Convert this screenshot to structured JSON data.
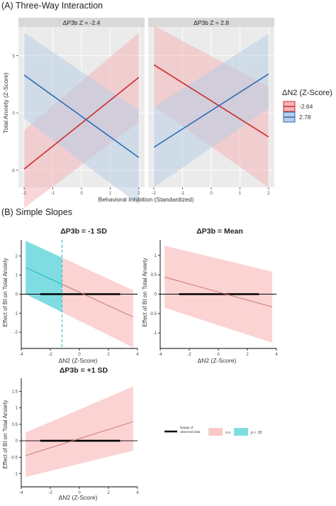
{
  "colors": {
    "red": "#cc2a2a",
    "blue": "#2a6db5",
    "red_band": "#f4b4b8",
    "blue_band": "#b9cde6",
    "slope_line": "#c87a6e",
    "sig_band": "#7fdde2",
    "sig_line": "#21b7c0",
    "strip": "#d9d9d9"
  },
  "panel_a": {
    "heading": "(A) Three-Way Interaction",
    "strips": [
      "ΔP3b Z = -2.4",
      "ΔP3b Z = 2.8"
    ],
    "ylabel": "Total Anxiety (Z-Score)",
    "xlabel": "Behavioral Inhibition (Standardized)",
    "legend": {
      "title": "ΔN2 (Z-Score)",
      "entries": [
        "-2.64",
        "2.78"
      ]
    }
  },
  "panel_b": {
    "heading": "(B) Simple Slopes",
    "plot_titles": [
      "ΔP3b = -1 SD",
      "ΔP3b = Mean",
      "ΔP3b = +1 SD"
    ],
    "ylabel": "Effect of BI on Total Anxiety",
    "xlabel": "ΔN2 (Z-Score)",
    "legend": {
      "range": "Range of observed data",
      "ns": "n.s.",
      "sig": "p < .05"
    }
  },
  "chart_data": [
    {
      "type": "line",
      "title": "ΔP3b Z = -2.4",
      "x": [
        -2,
        2
      ],
      "ylim": [
        -6.5,
        7.5
      ],
      "xlim": [
        -2.2,
        2.2
      ],
      "xticks": [
        -2,
        -1,
        0,
        1,
        2
      ],
      "yticks": [
        -5,
        0,
        5
      ],
      "series": [
        {
          "name": "-2.64",
          "color": "red",
          "values": [
            -4.9,
            3.1
          ],
          "lower": [
            -8.3,
            -0.8
          ],
          "upper": [
            -1.5,
            7.0
          ]
        },
        {
          "name": "2.78",
          "color": "blue",
          "values": [
            3.3,
            -3.9
          ],
          "lower": [
            -0.5,
            -8.0
          ],
          "upper": [
            7.0,
            0.2
          ]
        }
      ]
    },
    {
      "type": "line",
      "title": "ΔP3b Z = 2.8",
      "x": [
        -2,
        2
      ],
      "ylim": [
        -6.5,
        7.5
      ],
      "xlim": [
        -2.2,
        2.2
      ],
      "xticks": [
        -2,
        -1,
        0,
        1,
        2
      ],
      "yticks": [
        -5,
        0,
        5
      ],
      "series": [
        {
          "name": "-2.64",
          "color": "red",
          "values": [
            4.2,
            -2.1
          ],
          "lower": [
            0.6,
            -6.5
          ],
          "upper": [
            7.6,
            2.3
          ]
        },
        {
          "name": "2.78",
          "color": "blue",
          "values": [
            -3.0,
            3.4
          ],
          "lower": [
            -6.5,
            0.4
          ],
          "upper": [
            0.5,
            6.9
          ]
        }
      ]
    },
    {
      "type": "line",
      "title": "ΔP3b = -1 SD",
      "x": [
        -3.7,
        3.7
      ],
      "ylim": [
        -2.85,
        2.85
      ],
      "xlim": [
        -4,
        4
      ],
      "xticks": [
        -4,
        -2,
        0,
        2,
        4
      ],
      "yticks": [
        -2,
        -1,
        0,
        1,
        2
      ],
      "slope": {
        "values": [
          1.4,
          -1.2
        ],
        "lower": [
          0.0,
          -2.8
        ],
        "upper": [
          2.8,
          0.2
        ]
      },
      "significant_below_x": -1.2,
      "observed_range": [
        -2.7,
        2.8
      ]
    },
    {
      "type": "line",
      "title": "ΔP3b = Mean",
      "x": [
        -3.7,
        3.7
      ],
      "ylim": [
        -1.4,
        1.4
      ],
      "xlim": [
        -4,
        4
      ],
      "xticks": [
        -4,
        -2,
        0,
        2,
        4
      ],
      "yticks": [
        -1,
        -0.5,
        0,
        0.5,
        1
      ],
      "slope": {
        "values": [
          0.44,
          -0.33
        ],
        "lower": [
          -0.35,
          -1.25
        ],
        "upper": [
          1.25,
          0.58
        ]
      },
      "observed_range": [
        -2.7,
        2.8
      ]
    },
    {
      "type": "line",
      "title": "ΔP3b = +1 SD",
      "x": [
        -3.7,
        3.7
      ],
      "ylim": [
        -1.4,
        1.9
      ],
      "xlim": [
        -4,
        4
      ],
      "xticks": [
        -4,
        -2,
        0,
        2,
        4
      ],
      "yticks": [
        -1,
        -0.5,
        0,
        0.5,
        1,
        1.5
      ],
      "slope": {
        "values": [
          -0.45,
          0.58
        ],
        "lower": [
          -1.1,
          -0.3
        ],
        "upper": [
          0.25,
          1.65
        ]
      },
      "observed_range": [
        -2.7,
        2.8
      ]
    }
  ]
}
